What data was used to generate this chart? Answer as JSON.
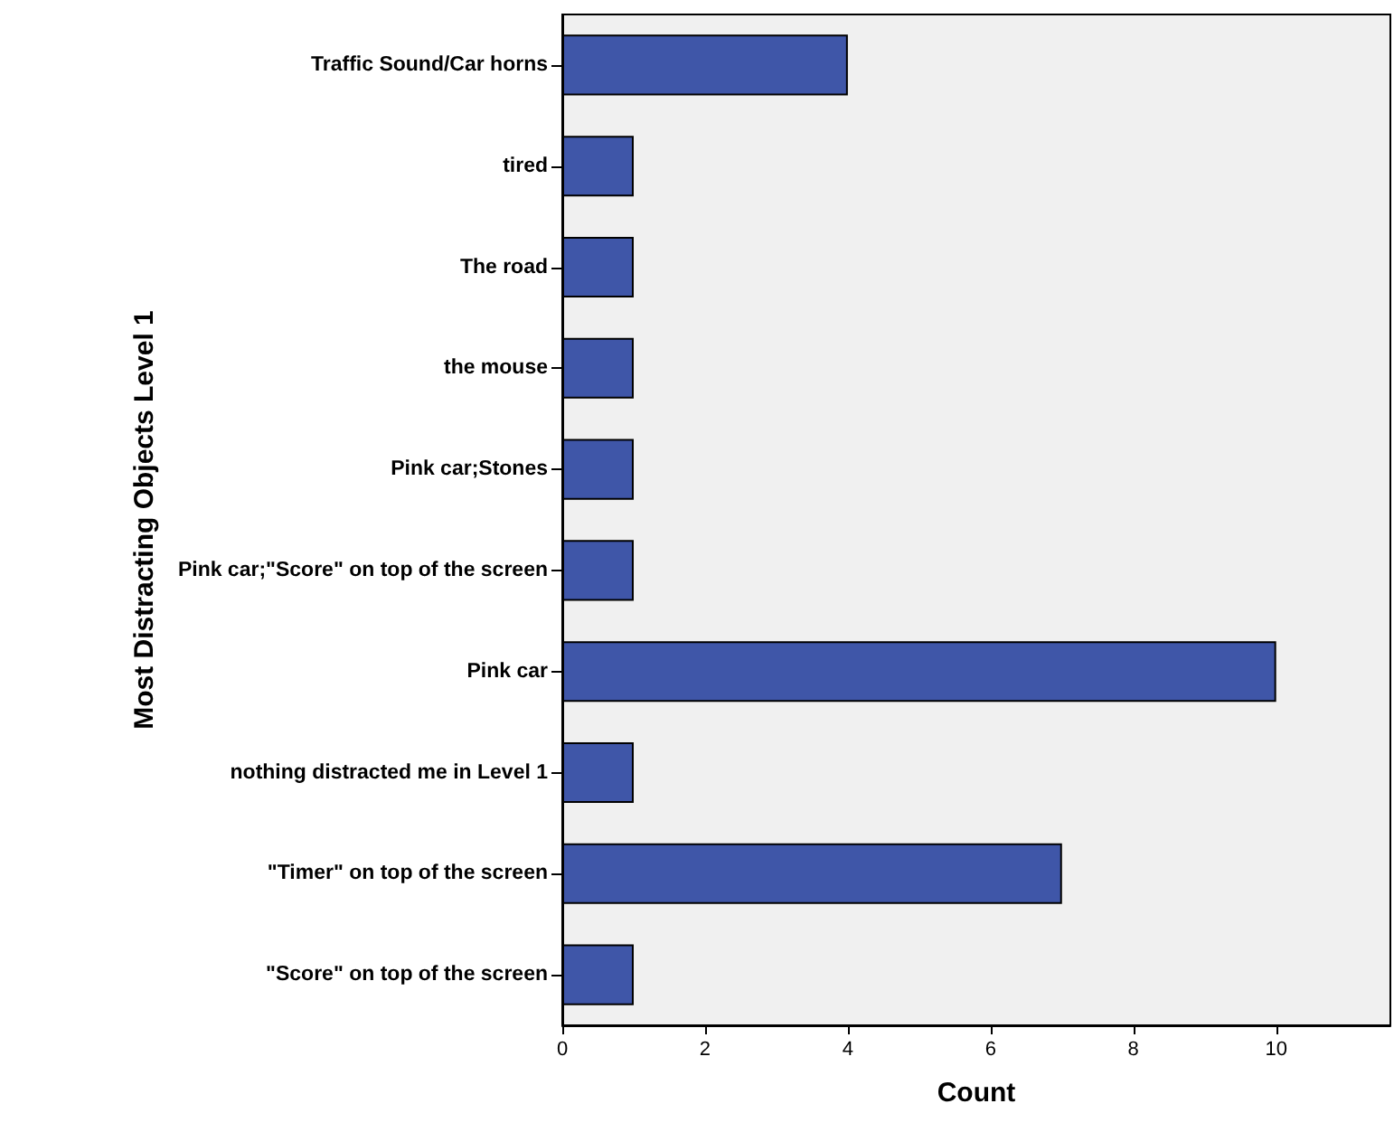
{
  "chart_data": {
    "type": "bar",
    "orientation": "horizontal",
    "xlabel": "Count",
    "ylabel": "Most Distracting Objects Level 1",
    "categories": [
      "Traffic Sound/Car horns",
      "tired",
      "The road",
      "the mouse",
      "Pink car;Stones",
      "Pink car;\"Score\" on top of the screen",
      "Pink car",
      "nothing distracted me in Level 1",
      "\"Timer\" on top of the screen",
      "\"Score\" on top of the screen"
    ],
    "values": [
      4,
      1,
      1,
      1,
      1,
      1,
      10,
      1,
      7,
      1
    ],
    "color": "#3f56a8",
    "xlim": [
      0,
      11.6
    ],
    "xticks": [
      0,
      2,
      4,
      6,
      8,
      10
    ],
    "grid": false
  }
}
